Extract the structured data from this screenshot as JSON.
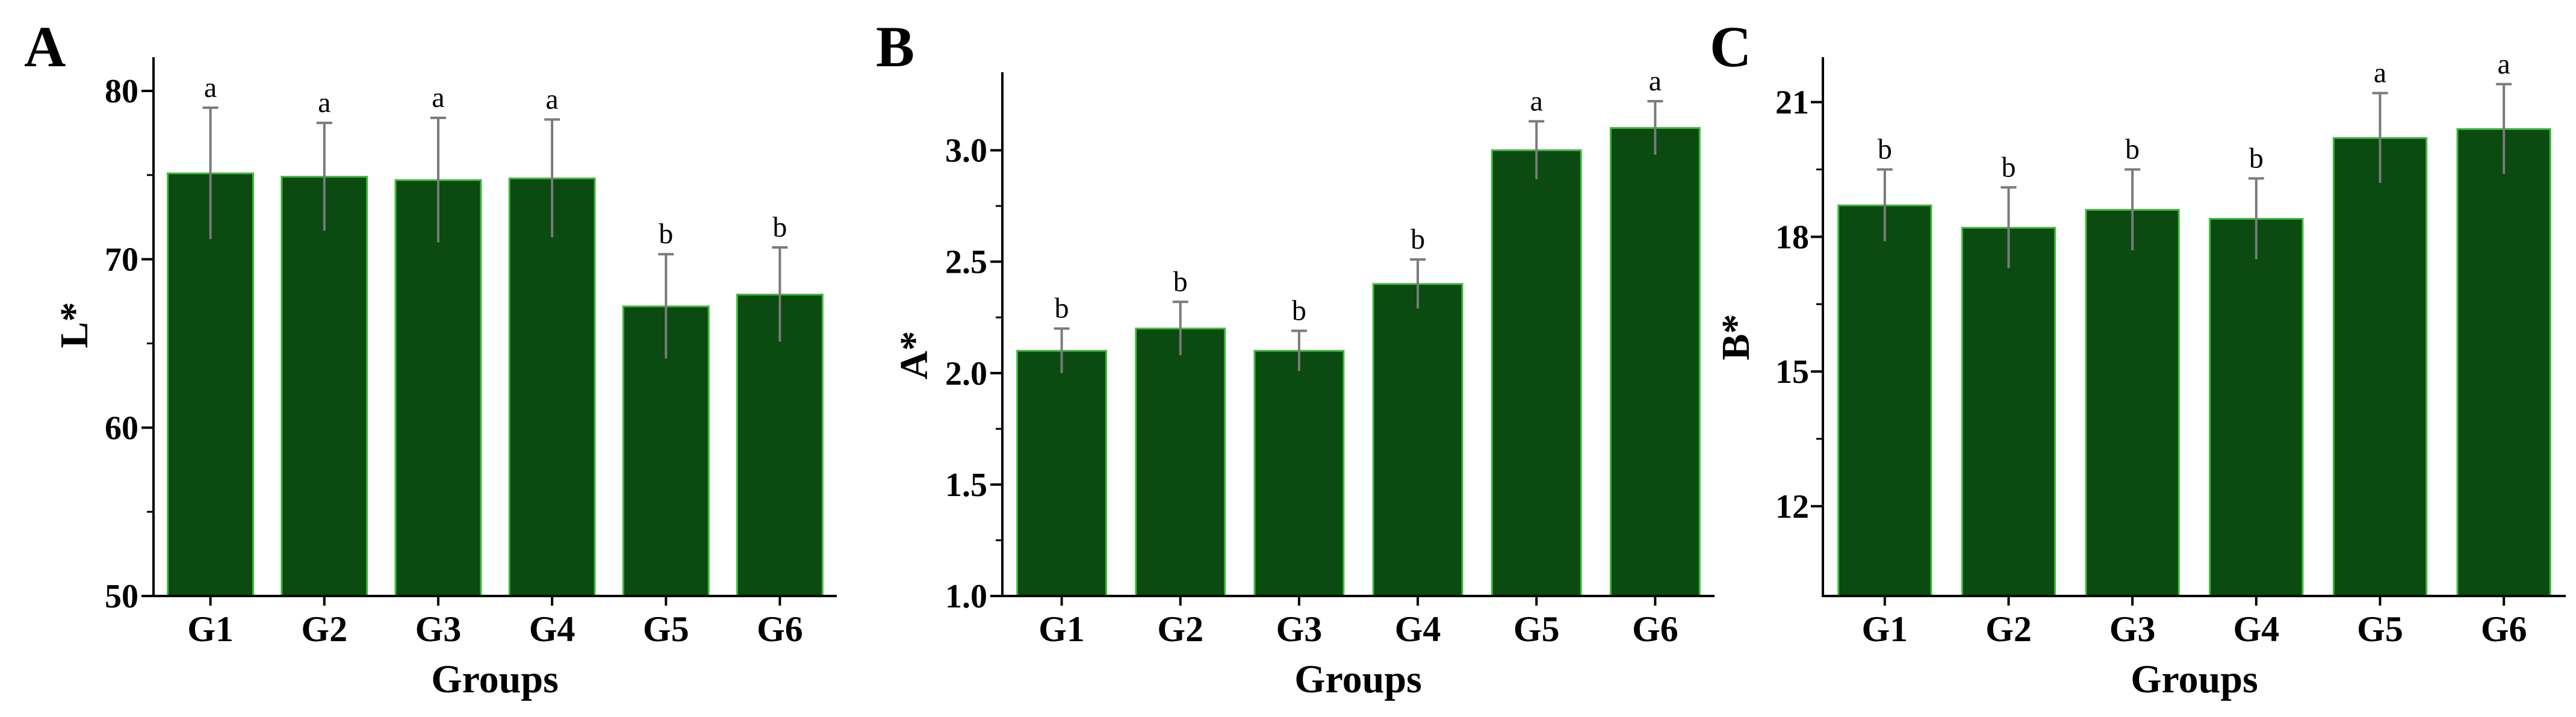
{
  "chart_data": [
    {
      "panel": "A",
      "type": "bar",
      "categories": [
        "G1",
        "G2",
        "G3",
        "G4",
        "G5",
        "G6"
      ],
      "values": [
        75.1,
        74.9,
        74.7,
        74.8,
        67.2,
        67.9
      ],
      "errors": [
        3.9,
        3.2,
        3.7,
        3.5,
        3.1,
        2.8
      ],
      "significance": [
        "a",
        "a",
        "a",
        "a",
        "b",
        "b"
      ],
      "xlabel": "Groups",
      "ylabel": "L*",
      "ylim": [
        50,
        82
      ],
      "yticks": [
        50,
        60,
        70,
        80
      ],
      "ytick_labels": [
        "50",
        "60",
        "70",
        "80"
      ],
      "grid": false,
      "colors": {
        "bar_fill": "#0b4a10",
        "bar_edge": "#3dbb3d",
        "error_bar": "#7a7a7a"
      }
    },
    {
      "panel": "B",
      "type": "bar",
      "categories": [
        "G1",
        "G2",
        "G3",
        "G4",
        "G5",
        "G6"
      ],
      "values": [
        2.1,
        2.2,
        2.1,
        2.4,
        3.0,
        3.1
      ],
      "errors": [
        0.1,
        0.12,
        0.09,
        0.11,
        0.13,
        0.12
      ],
      "significance": [
        "b",
        "b",
        "b",
        "b",
        "a",
        "a"
      ],
      "xlabel": "Groups",
      "ylabel": "A*",
      "ylim": [
        1.0,
        3.35
      ],
      "yticks": [
        1.0,
        1.5,
        2.0,
        2.5,
        3.0
      ],
      "ytick_labels": [
        "1.0",
        "1.5",
        "2.0",
        "2.5",
        "3.0"
      ],
      "grid": false,
      "colors": {
        "bar_fill": "#0b4a10",
        "bar_edge": "#3dbb3d",
        "error_bar": "#7a7a7a"
      }
    },
    {
      "panel": "C",
      "type": "bar",
      "categories": [
        "G1",
        "G2",
        "G3",
        "G4",
        "G5",
        "G6"
      ],
      "values": [
        18.7,
        18.2,
        18.6,
        18.4,
        20.2,
        20.4
      ],
      "errors": [
        0.8,
        0.9,
        0.9,
        0.9,
        1.0,
        1.0
      ],
      "significance": [
        "b",
        "b",
        "b",
        "b",
        "a",
        "a"
      ],
      "xlabel": "Groups",
      "ylabel": "B*",
      "ylim": [
        10.0,
        22.0
      ],
      "yticks": [
        12,
        15,
        18,
        21
      ],
      "ytick_labels": [
        "12",
        "15",
        "18",
        "21"
      ],
      "grid": false,
      "colors": {
        "bar_fill": "#0b4a10",
        "bar_edge": "#3dbb3d",
        "error_bar": "#7a7a7a"
      }
    }
  ]
}
